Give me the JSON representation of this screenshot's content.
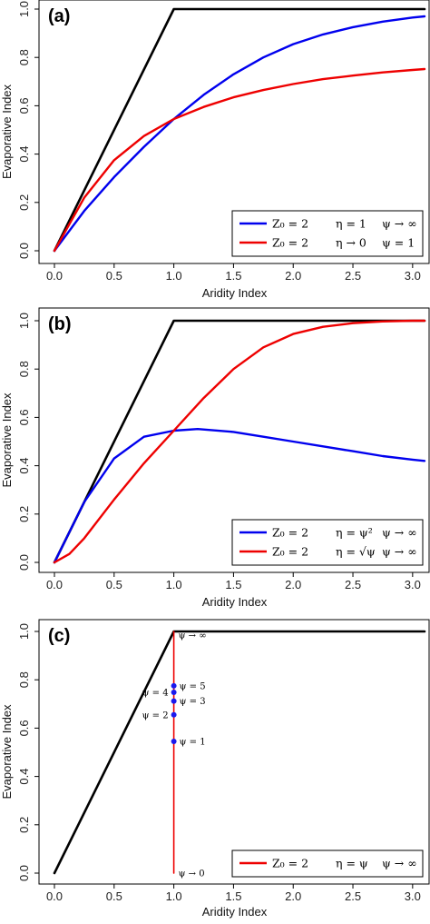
{
  "chart_data": [
    {
      "type": "line",
      "panel_label": "(a)",
      "xlabel": "Aridity Index",
      "ylabel": "Evaporative Index",
      "xlim": [
        0,
        3.1
      ],
      "ylim": [
        0,
        1.0
      ],
      "xticks": [
        "0.0",
        "0.5",
        "1.0",
        "1.5",
        "2.0",
        "2.5",
        "3.0"
      ],
      "yticks": [
        "0.0",
        "0.2",
        "0.4",
        "0.6",
        "0.8",
        "1.0"
      ],
      "legend_position": "bottom-right",
      "series": [
        {
          "color": "#000000",
          "legend": false,
          "x": [
            0,
            1,
            3.1
          ],
          "y": [
            0,
            1,
            1
          ]
        },
        {
          "color": "#0000ee",
          "legend": true,
          "legend_parts": [
            "Z₀ = 2",
            "η = 1",
            "ψ → ∞"
          ],
          "x": [
            0,
            0.25,
            0.5,
            0.75,
            1.0,
            1.25,
            1.5,
            1.75,
            2.0,
            2.25,
            2.5,
            2.75,
            3.0,
            3.1
          ],
          "y": [
            0,
            0.165,
            0.305,
            0.43,
            0.545,
            0.645,
            0.73,
            0.8,
            0.855,
            0.895,
            0.925,
            0.948,
            0.965,
            0.97
          ]
        },
        {
          "color": "#ee0000",
          "legend": true,
          "legend_parts": [
            "Z₀ = 2",
            "η → 0",
            "ψ = 1"
          ],
          "x": [
            0,
            0.25,
            0.5,
            0.75,
            1.0,
            1.25,
            1.5,
            1.75,
            2.0,
            2.25,
            2.5,
            2.75,
            3.0,
            3.1
          ],
          "y": [
            0,
            0.22,
            0.375,
            0.475,
            0.545,
            0.595,
            0.635,
            0.665,
            0.69,
            0.71,
            0.725,
            0.738,
            0.748,
            0.752
          ]
        }
      ]
    },
    {
      "type": "line",
      "panel_label": "(b)",
      "xlabel": "Aridity Index",
      "ylabel": "Evaporative Index",
      "xlim": [
        0,
        3.1
      ],
      "ylim": [
        0,
        1.0
      ],
      "xticks": [
        "0.0",
        "0.5",
        "1.0",
        "1.5",
        "2.0",
        "2.5",
        "3.0"
      ],
      "yticks": [
        "0.0",
        "0.2",
        "0.4",
        "0.6",
        "0.8",
        "1.0"
      ],
      "legend_position": "bottom-right",
      "series": [
        {
          "color": "#000000",
          "legend": false,
          "x": [
            0,
            1,
            3.1
          ],
          "y": [
            0,
            1,
            1
          ]
        },
        {
          "color": "#0000ee",
          "legend": true,
          "legend_parts": [
            "Z₀ = 2",
            "η = ψ²",
            "ψ → ∞"
          ],
          "x": [
            0,
            0.25,
            0.5,
            0.75,
            1.0,
            1.2,
            1.5,
            1.75,
            2.0,
            2.25,
            2.5,
            2.75,
            3.0,
            3.1
          ],
          "y": [
            0,
            0.25,
            0.43,
            0.52,
            0.545,
            0.552,
            0.54,
            0.52,
            0.5,
            0.48,
            0.46,
            0.44,
            0.425,
            0.42
          ]
        },
        {
          "color": "#ee0000",
          "legend": true,
          "legend_parts": [
            "Z₀ = 2",
            "η = √ψ",
            "ψ → ∞"
          ],
          "x": [
            0,
            0.125,
            0.25,
            0.5,
            0.75,
            1.0,
            1.25,
            1.5,
            1.75,
            2.0,
            2.25,
            2.5,
            2.75,
            3.0,
            3.1
          ],
          "y": [
            0,
            0.035,
            0.1,
            0.26,
            0.41,
            0.545,
            0.68,
            0.8,
            0.89,
            0.945,
            0.975,
            0.99,
            0.997,
            1.0,
            1.0
          ]
        }
      ]
    },
    {
      "type": "line",
      "panel_label": "(c)",
      "xlabel": "Aridity Index",
      "ylabel": "Evaporative Index",
      "xlim": [
        0,
        3.1
      ],
      "ylim": [
        0,
        1.0
      ],
      "xticks": [
        "0.0",
        "0.5",
        "1.0",
        "1.5",
        "2.0",
        "2.5",
        "3.0"
      ],
      "yticks": [
        "0.0",
        "0.2",
        "0.4",
        "0.6",
        "0.8",
        "1.0"
      ],
      "legend_position": "bottom-right",
      "series": [
        {
          "color": "#000000",
          "legend": false,
          "x": [
            0,
            1,
            3.1
          ],
          "y": [
            0,
            1,
            1
          ]
        },
        {
          "color": "#ee0000",
          "legend": true,
          "legend_parts": [
            "Z₀ = 2",
            "η = ψ",
            "ψ → ∞"
          ],
          "x": [
            1,
            1
          ],
          "y": [
            0,
            1
          ]
        }
      ],
      "points": {
        "color": "#1a1aee",
        "items": [
          {
            "x": 1,
            "y": 0.545,
            "label": "ψ = 1",
            "side": "right"
          },
          {
            "x": 1,
            "y": 0.655,
            "label": "ψ = 2",
            "side": "left"
          },
          {
            "x": 1,
            "y": 0.712,
            "label": "ψ = 3",
            "side": "right"
          },
          {
            "x": 1,
            "y": 0.748,
            "label": "ψ = 4",
            "side": "left"
          },
          {
            "x": 1,
            "y": 0.775,
            "label": "ψ = 5",
            "side": "right"
          }
        ]
      },
      "annotations": [
        {
          "x": 1,
          "y": 0.985,
          "label": "ψ → ∞"
        },
        {
          "x": 1,
          "y": 0.0,
          "label": "ψ → 0"
        }
      ]
    }
  ]
}
